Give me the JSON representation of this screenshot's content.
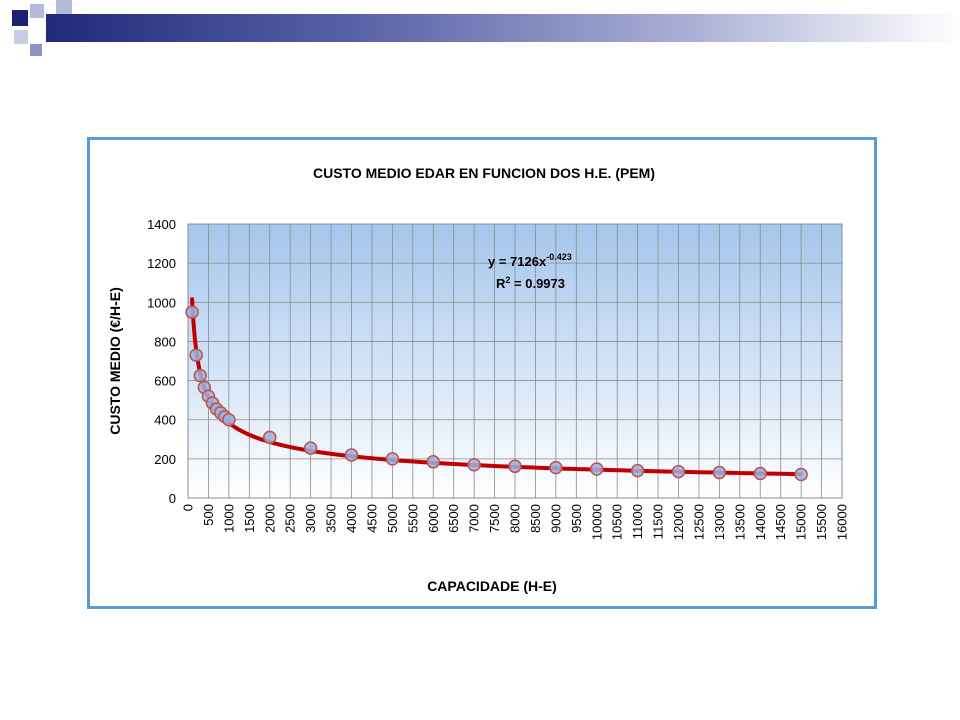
{
  "slide": {
    "accent_colors": [
      "#1a2370",
      "#5a64a8",
      "#a9aed4",
      "#ffffff"
    ]
  },
  "chart_data": {
    "type": "scatter",
    "title": "CUSTO MEDIO  EDAR EN FUNCION DOS H.E. (PEM)",
    "xlabel": "CAPACIDADE (H-E)",
    "ylabel": "CUSTO MEDIO (€/H-E)",
    "xlim": [
      0,
      16000
    ],
    "ylim": [
      0,
      1400
    ],
    "x_ticks": [
      0,
      500,
      1000,
      1500,
      2000,
      2500,
      3000,
      3500,
      4000,
      4500,
      5000,
      5500,
      6000,
      6500,
      7000,
      7500,
      8000,
      8500,
      9000,
      9500,
      10000,
      10500,
      11000,
      11500,
      12000,
      12500,
      13000,
      13500,
      14000,
      14500,
      15000,
      15500,
      16000
    ],
    "y_ticks": [
      0,
      200,
      400,
      600,
      800,
      1000,
      1200,
      1400
    ],
    "grid": true,
    "plot_background": "gradient #a4c5ec to #ffffff",
    "series": [
      {
        "marker_color": "#9bb3df",
        "marker_edge": "#c0504d",
        "x": [
          100,
          200,
          300,
          400,
          500,
          600,
          700,
          800,
          900,
          1000,
          2000,
          3000,
          4000,
          5000,
          6000,
          7000,
          8000,
          9000,
          10000,
          11000,
          12000,
          13000,
          14000,
          15000
        ],
        "y": [
          950,
          730,
          625,
          565,
          520,
          485,
          455,
          435,
          415,
          400,
          310,
          255,
          220,
          200,
          185,
          170,
          162,
          155,
          148,
          140,
          135,
          130,
          125,
          120
        ]
      }
    ],
    "trendline": {
      "type": "power",
      "coefficient": 7126,
      "exponent": -0.423,
      "color": "#c00000",
      "x_range": [
        100,
        15000
      ],
      "equation_label": {
        "prefix": "y = 7126x",
        "exponent": "-0.423"
      },
      "r2_label": {
        "prefix": "R",
        "sup": "2",
        "suffix": " = 0.9973"
      }
    }
  }
}
